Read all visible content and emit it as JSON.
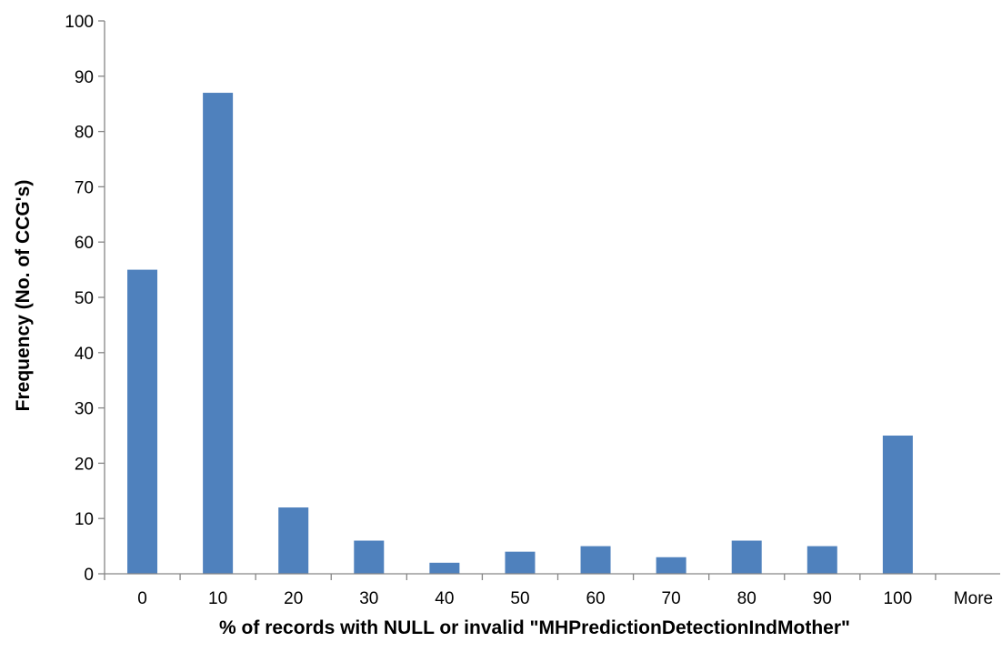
{
  "chart_data": {
    "type": "bar",
    "title": "",
    "xlabel": "% of records with NULL or invalid \"MHPredictionDetectionIndMother\"",
    "ylabel": "Frequency (No. of CCG's)",
    "categories": [
      "0",
      "10",
      "20",
      "30",
      "40",
      "50",
      "60",
      "70",
      "80",
      "90",
      "100",
      "More"
    ],
    "values": [
      55,
      87,
      12,
      6,
      2,
      4,
      5,
      3,
      6,
      5,
      25,
      0
    ],
    "ylim": [
      0,
      100
    ],
    "yticks": [
      0,
      10,
      20,
      30,
      40,
      50,
      60,
      70,
      80,
      90,
      100
    ],
    "grid": false,
    "legend": "none",
    "bar_color": "#4f81bd",
    "axis_color": "#868686"
  }
}
